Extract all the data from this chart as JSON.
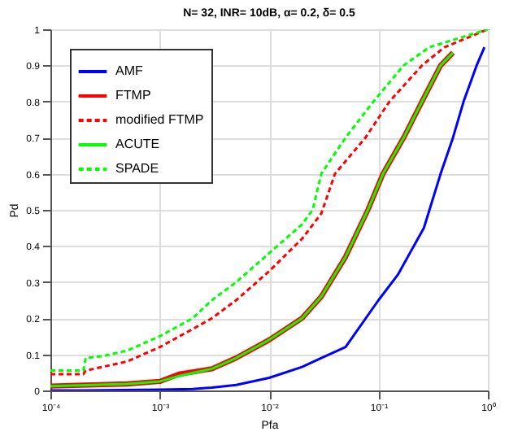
{
  "chart_data": {
    "type": "line",
    "title": "N= 32, INR= 10dB, α= 0.2, δ= 0.5",
    "xlabel": "Pfa",
    "ylabel": "Pd",
    "log": "x",
    "grid": true,
    "legend": "top left",
    "xlim": [
      0.0001,
      1
    ],
    "ylim": [
      0,
      1
    ],
    "xticks": [
      {
        "value": 0.0001,
        "label": "10⁻⁴"
      },
      {
        "value": 0.001,
        "label": "10⁻³"
      },
      {
        "value": 0.01,
        "label": "10⁻²"
      },
      {
        "value": 0.1,
        "label": "10⁻¹"
      },
      {
        "value": 1,
        "label": "10⁰"
      }
    ],
    "yticks": [
      0,
      0.1,
      0.2,
      0.3,
      0.4,
      0.5,
      0.6,
      0.7,
      0.8,
      0.9,
      1
    ],
    "series": [
      {
        "name": "AMF",
        "color": "#0000ff",
        "line_style": "solid",
        "x": [
          0.0001,
          0.0002,
          0.001,
          0.002,
          0.003,
          0.005,
          0.01,
          0.02,
          0.03,
          0.05,
          0.1,
          0.15,
          0.26,
          0.37,
          0.48,
          0.6,
          0.79,
          0.93
        ],
        "values": [
          0,
          0,
          0.002,
          0.004,
          0.008,
          0.015,
          0.035,
          0.065,
          0.09,
          0.12,
          0.25,
          0.32,
          0.45,
          0.6,
          0.7,
          0.8,
          0.9,
          0.95
        ]
      },
      {
        "name": "FTMP",
        "color": "#ff0000",
        "line_style": "solid",
        "x": [
          0.0001,
          0.0005,
          0.001,
          0.0015,
          0.003,
          0.005,
          0.01,
          0.02,
          0.03,
          0.05,
          0.08,
          0.11,
          0.17,
          0.25,
          0.37,
          0.48
        ],
        "values": [
          0.012,
          0.018,
          0.025,
          0.045,
          0.06,
          0.09,
          0.14,
          0.2,
          0.26,
          0.37,
          0.5,
          0.6,
          0.7,
          0.8,
          0.9,
          0.935
        ]
      },
      {
        "name": "modified FTMP",
        "color": "#ff0000",
        "line_style": "dashed",
        "x": [
          0.0001,
          0.0002,
          0.00021,
          0.0005,
          0.001,
          0.002,
          0.003,
          0.005,
          0.01,
          0.02,
          0.03,
          0.04,
          0.076,
          0.126,
          0.25,
          0.4,
          1
        ],
        "values": [
          0.045,
          0.045,
          0.055,
          0.08,
          0.12,
          0.17,
          0.2,
          0.25,
          0.33,
          0.42,
          0.49,
          0.6,
          0.7,
          0.8,
          0.9,
          0.95,
          1
        ]
      },
      {
        "name": "ACUTE",
        "color": "#00ff00",
        "line_style": "solid",
        "x": [
          0.0001,
          0.0005,
          0.001,
          0.0015,
          0.003,
          0.005,
          0.01,
          0.02,
          0.03,
          0.05,
          0.08,
          0.11,
          0.17,
          0.25,
          0.37,
          0.48
        ],
        "values": [
          0.012,
          0.018,
          0.025,
          0.04,
          0.06,
          0.09,
          0.14,
          0.2,
          0.26,
          0.37,
          0.5,
          0.6,
          0.7,
          0.8,
          0.9,
          0.935
        ]
      },
      {
        "name": "SPADE",
        "color": "#00ff00",
        "line_style": "dashed",
        "x": [
          0.0001,
          0.0002,
          0.00021,
          0.0003,
          0.0005,
          0.001,
          0.002,
          0.003,
          0.005,
          0.01,
          0.02,
          0.025,
          0.03,
          0.05,
          0.09,
          0.17,
          0.29,
          1
        ],
        "values": [
          0.055,
          0.055,
          0.09,
          0.095,
          0.11,
          0.15,
          0.2,
          0.25,
          0.3,
          0.38,
          0.46,
          0.5,
          0.6,
          0.7,
          0.8,
          0.9,
          0.95,
          1
        ]
      }
    ]
  }
}
